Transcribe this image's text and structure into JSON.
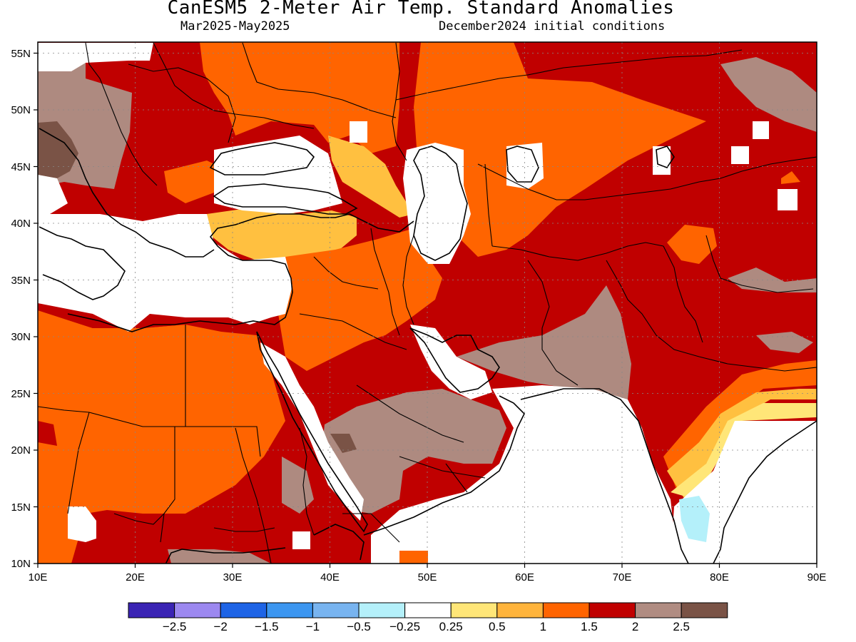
{
  "header": {
    "title": "CanESM5 2-Meter Air Temp. Standard Anomalies",
    "period": "Mar2025-May2025",
    "initial_conditions": "December2024 initial conditions"
  },
  "map": {
    "lon_range": [
      10,
      90
    ],
    "lat_range": [
      10,
      56
    ],
    "x_ticks": [
      "10E",
      "20E",
      "30E",
      "40E",
      "50E",
      "60E",
      "70E",
      "80E",
      "90E"
    ],
    "y_ticks": [
      "10N",
      "15N",
      "20N",
      "25N",
      "30N",
      "35N",
      "40N",
      "45N",
      "50N",
      "55N"
    ],
    "gridlines": "dotted"
  },
  "colorbar": {
    "colors": [
      "#3a24b4",
      "#9c88f0",
      "#1e64e6",
      "#3c96f0",
      "#78b4f0",
      "#b4f0fa",
      "#ffffff",
      "#ffe678",
      "#ffb43c",
      "#ff6400",
      "#c00000",
      "#b08c82",
      "#7a5346"
    ],
    "labels": [
      "-2.5",
      "-2",
      "-1.5",
      "-1",
      "-0.5",
      "-0.25",
      "0.25",
      "0.5",
      "1",
      "1.5",
      "2",
      "2.5"
    ]
  },
  "fill_colors": {
    "white": "#ffffff",
    "light_orange": "#ffc040",
    "orange": "#ff6400",
    "dark_red": "#c00000",
    "tan": "#ae8a80",
    "brown": "#7a5346",
    "pale_yellow": "#ffe678",
    "light_cyan": "#b4f0fa"
  }
}
